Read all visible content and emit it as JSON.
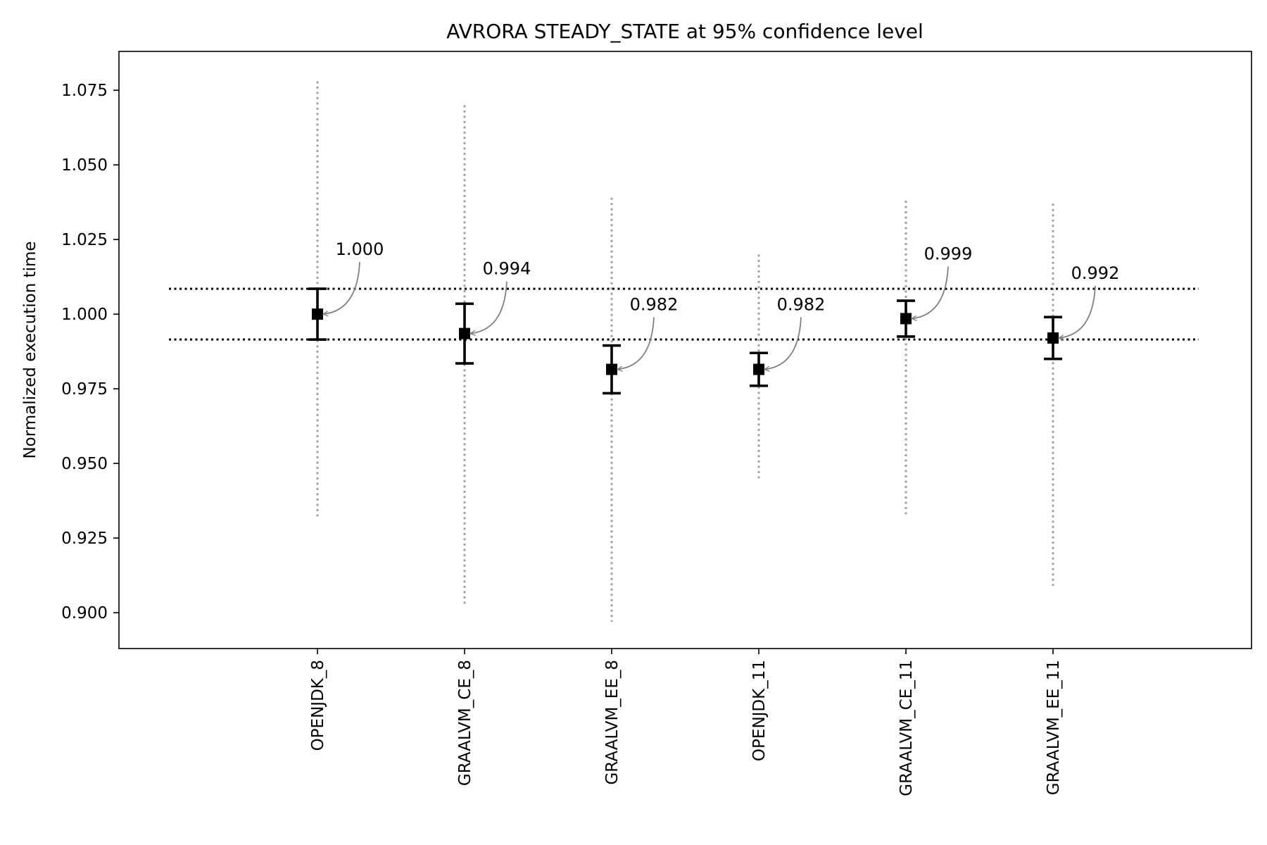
{
  "chart_data": {
    "type": "errorbar",
    "title": "AVRORA STEADY_STATE at 95% confidence level",
    "xlabel": "",
    "ylabel": "Normalized execution time",
    "ylim": [
      0.888,
      1.088
    ],
    "yticks": [
      "0.900",
      "0.925",
      "0.950",
      "0.975",
      "1.000",
      "1.025",
      "1.050",
      "1.075"
    ],
    "grid": false,
    "categories": [
      "OPENJDK_8",
      "GRAALVM_CE_8",
      "GRAALVM_EE_8",
      "OPENJDK_11",
      "GRAALVM_CE_11",
      "GRAALVM_EE_11"
    ],
    "means": [
      1.0,
      0.9935,
      0.9815,
      0.9815,
      0.9985,
      0.992
    ],
    "ci_low": [
      0.9915,
      0.9835,
      0.9735,
      0.976,
      0.9925,
      0.985
    ],
    "ci_high": [
      1.0085,
      1.0035,
      0.9895,
      0.987,
      1.0045,
      0.999
    ],
    "range_low": [
      0.932,
      0.903,
      0.897,
      0.944,
      0.933,
      0.909
    ],
    "range_high": [
      1.078,
      1.07,
      1.039,
      1.02,
      1.038,
      1.037
    ],
    "labels": [
      "1.000",
      "0.994",
      "0.982",
      "0.982",
      "0.999",
      "0.992"
    ],
    "reference_lines": [
      1.0085,
      0.9915
    ],
    "colors": {
      "marker": "#000000",
      "range": "#a0a0a0",
      "arrow": "#808080",
      "reference": "#000000"
    }
  }
}
